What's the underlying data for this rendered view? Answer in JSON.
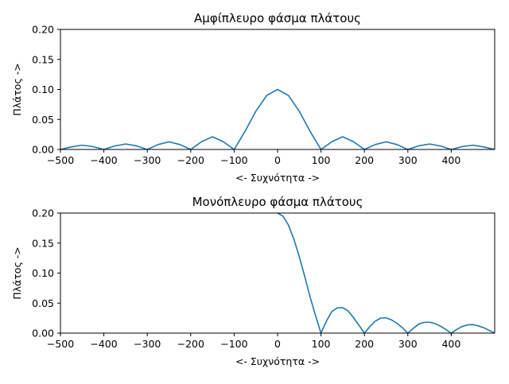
{
  "chart_data": [
    {
      "type": "line",
      "title": "Αμφίπλευρο φάσμα πλάτους",
      "xlabel": "<- Συχνότητα ->",
      "ylabel": "Πλάτος ->",
      "xlim": [
        -500,
        500
      ],
      "ylim": [
        0,
        0.2
      ],
      "xticks": [
        -500,
        -400,
        -300,
        -200,
        -100,
        0,
        100,
        200,
        300,
        400
      ],
      "xtick_labels": [
        "−500",
        "−400",
        "−300",
        "−200",
        "−100",
        "0",
        "100",
        "200",
        "300",
        "400"
      ],
      "yticks": [
        0,
        0.05,
        0.1,
        0.15,
        0.2
      ],
      "ytick_labels": [
        "0.00",
        "0.05",
        "0.10",
        "0.15",
        "0.20"
      ],
      "grid": false,
      "series": [
        {
          "color": "#1f77b4",
          "x": [
            -500,
            -475,
            -450,
            -425,
            -400,
            -375,
            -350,
            -325,
            -300,
            -275,
            -250,
            -225,
            -200,
            -175,
            -150,
            -125,
            -100,
            -75,
            -50,
            -25,
            0,
            25,
            50,
            75,
            100,
            125,
            150,
            175,
            200,
            225,
            250,
            275,
            300,
            325,
            350,
            375,
            400,
            425,
            450,
            475,
            500
          ],
          "y": [
            0,
            0.0042,
            0.0071,
            0.0048,
            0,
            0.0058,
            0.0091,
            0.006,
            0,
            0.0082,
            0.0127,
            0.0082,
            0,
            0.0129,
            0.0212,
            0.0129,
            0,
            0.03,
            0.0637,
            0.09,
            0.1,
            0.09,
            0.0637,
            0.03,
            0,
            0.0129,
            0.0212,
            0.0129,
            0,
            0.0082,
            0.0127,
            0.0082,
            0,
            0.006,
            0.0091,
            0.0058,
            0,
            0.0048,
            0.0071,
            0.0042,
            0
          ]
        }
      ]
    },
    {
      "type": "line",
      "title": "Μονόπλευρο φάσμα πλάτους",
      "xlabel": "<- Συχνότητα ->",
      "ylabel": "Πλάτος ->",
      "xlim": [
        -500,
        500
      ],
      "ylim": [
        0,
        0.2
      ],
      "xticks": [
        -500,
        -400,
        -300,
        -200,
        -100,
        0,
        100,
        200,
        300,
        400
      ],
      "xtick_labels": [
        "−500",
        "−400",
        "−300",
        "−200",
        "−100",
        "0",
        "100",
        "200",
        "300",
        "400"
      ],
      "yticks": [
        0,
        0.05,
        0.1,
        0.15,
        0.2
      ],
      "ytick_labels": [
        "0.00",
        "0.05",
        "0.10",
        "0.15",
        "0.20"
      ],
      "grid": false,
      "series": [
        {
          "color": "#1f77b4",
          "x": [
            0,
            12.5,
            25,
            37.5,
            50,
            62.5,
            75,
            87.5,
            100,
            112.5,
            125,
            137.5,
            150,
            162.5,
            175,
            187.5,
            200,
            212.5,
            225,
            237.5,
            250,
            262.5,
            275,
            287.5,
            300,
            312.5,
            325,
            337.5,
            350,
            362.5,
            375,
            387.5,
            400,
            412.5,
            425,
            437.5,
            450,
            462.5,
            475,
            487.5,
            500
          ],
          "y": [
            0.2,
            0.1949,
            0.18,
            0.1567,
            0.1273,
            0.0945,
            0.06,
            0.029,
            0,
            0.02,
            0.036,
            0.042,
            0.0424,
            0.037,
            0.0257,
            0.013,
            0,
            0.011,
            0.02,
            0.025,
            0.0255,
            0.022,
            0.0164,
            0.009,
            0,
            0.008,
            0.015,
            0.018,
            0.0182,
            0.016,
            0.0116,
            0.006,
            0,
            0.006,
            0.011,
            0.0138,
            0.0141,
            0.012,
            0.009,
            0.0045,
            0
          ]
        }
      ]
    }
  ]
}
